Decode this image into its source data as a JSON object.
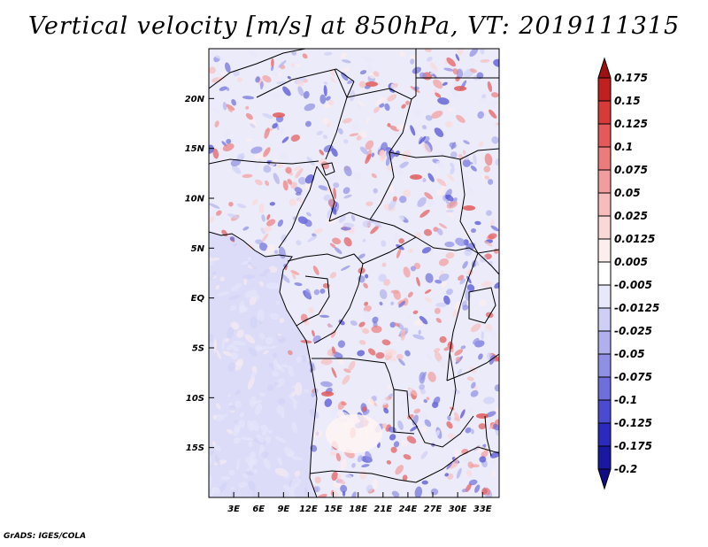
{
  "title": "Vertical velocity [m/s] at 850hPa, VT: 2019111315",
  "credit": "GrADS: IGES/COLA",
  "map": {
    "lon_range": [
      0,
      35
    ],
    "lat_range": [
      -20,
      25
    ],
    "lat_ticks": [
      {
        "value": 20,
        "label": "20N"
      },
      {
        "value": 15,
        "label": "15N"
      },
      {
        "value": 10,
        "label": "10N"
      },
      {
        "value": 5,
        "label": "5N"
      },
      {
        "value": 0,
        "label": "EQ"
      },
      {
        "value": -5,
        "label": "5S"
      },
      {
        "value": -10,
        "label": "10S"
      },
      {
        "value": -15,
        "label": "15S"
      }
    ],
    "lon_ticks": [
      {
        "value": 3,
        "label": "3E"
      },
      {
        "value": 6,
        "label": "6E"
      },
      {
        "value": 9,
        "label": "9E"
      },
      {
        "value": 12,
        "label": "12E"
      },
      {
        "value": 15,
        "label": "15E"
      },
      {
        "value": 18,
        "label": "18E"
      },
      {
        "value": 21,
        "label": "21E"
      },
      {
        "value": 24,
        "label": "24E"
      },
      {
        "value": 27,
        "label": "27E"
      },
      {
        "value": 30,
        "label": "30E"
      },
      {
        "value": 33,
        "label": "33E"
      }
    ]
  },
  "colorbar": {
    "labels": [
      "0.175",
      "0.15",
      "0.125",
      "0.1",
      "0.075",
      "0.05",
      "0.025",
      "0.0125",
      "0.005",
      "-0.005",
      "-0.0125",
      "-0.025",
      "-0.05",
      "-0.075",
      "-0.1",
      "-0.125",
      "-0.175",
      "-0.2"
    ],
    "colors": [
      "#a01010",
      "#c02020",
      "#d83a3a",
      "#e45a5a",
      "#ec7c7c",
      "#f29d9d",
      "#f7bcbc",
      "#fbd8d8",
      "#fdeeee",
      "#ffffff",
      "#e8e8fb",
      "#cfcff6",
      "#b0b0ee",
      "#8f8fe6",
      "#6e6edc",
      "#4b4bd2",
      "#2a2abf",
      "#1818a0",
      "#100c85"
    ]
  },
  "field_colors": {
    "ocean_base": "#dcdcf8",
    "land_base": "#ecebf9",
    "updraft": "#e05a5a",
    "downdraft": "#6a6ade"
  }
}
